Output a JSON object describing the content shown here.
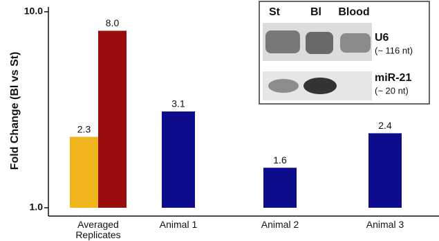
{
  "chart_data": {
    "type": "bar",
    "y_label": "Fold Change (Bl vs St)",
    "log_scale": true,
    "categories": [
      "Averaged Replicates",
      "Animal 1",
      "Animal 2",
      "Animal 3"
    ],
    "series": [
      {
        "color": "#f0b41c",
        "values": [
          2.3,
          null,
          null,
          null
        ]
      },
      {
        "color": "#9b0d0d",
        "values": [
          8.0,
          null,
          null,
          null
        ],
        "value_labels": [
          "8.0",
          null,
          null,
          null
        ]
      },
      {
        "color": "#0c0c8c",
        "values": [
          null,
          3.1,
          1.6,
          2.4
        ]
      }
    ],
    "ylim": [
      1,
      10
    ],
    "yticks": [
      {
        "value": 1,
        "label": "1.0"
      },
      {
        "value": 10,
        "label": "10.0"
      }
    ],
    "inset": {
      "lanes": [
        "St",
        "Bl",
        "Blood"
      ],
      "bands": [
        {
          "name": "U6",
          "size": "(~ 116 nt)"
        },
        {
          "name": "miR-21",
          "size": "(~ 20 nt)"
        }
      ]
    }
  }
}
